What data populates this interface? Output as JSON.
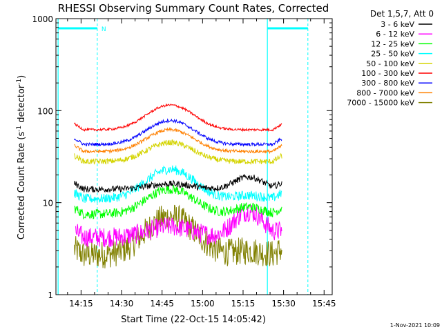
{
  "chart_data": {
    "type": "line",
    "title": "RHESSI Observing Summary Count Rates, Corrected",
    "xlabel": "Start Time (22-Oct-15 14:05:42)",
    "ylabel": "Corrected Count Rate (s^-1 detector^-1)",
    "ylabel_parts": {
      "main": "Corrected Count Rate (s",
      "exp1": "-1",
      "mid": " detector",
      "exp2": "-1",
      "end": ")"
    },
    "x_ticks": [
      "14:15",
      "14:30",
      "14:45",
      "15:00",
      "15:15",
      "15:30",
      "15:45"
    ],
    "x_tick_minutes": [
      15,
      30,
      45,
      60,
      75,
      90,
      105
    ],
    "xlim_minutes": [
      5.7,
      108
    ],
    "y_scale": "log",
    "ylim": [
      1,
      1000
    ],
    "y_ticks": [
      "1",
      "10",
      "100",
      "1000"
    ],
    "y_tick_values": [
      1,
      10,
      100,
      1000
    ],
    "grid": false,
    "legend_title": "Det 1,5,7, Att 0",
    "legend_placement": "right",
    "timestamp": "1-Nov-2021 10:09",
    "night_marker": "N",
    "shaded_intervals_minutes": [
      [
        6.5,
        21
      ],
      [
        84,
        99
      ]
    ],
    "series": [
      {
        "name": "3 - 6 keV",
        "color": "#000000",
        "start": 12.5,
        "end": 89.5,
        "base": 14,
        "bump": 16,
        "bump2": 19,
        "noise": 0.08,
        "color_desc": "black"
      },
      {
        "name": "6 - 12 keV",
        "color": "#ff00ff",
        "start": 13,
        "end": 89.5,
        "base": 4.2,
        "bump": 5.5,
        "bump2": 8,
        "noise": 0.25
      },
      {
        "name": "12 - 25 keV",
        "color": "#00ff00",
        "start": 12.5,
        "end": 89.5,
        "base": 7.5,
        "bump": 14,
        "bump2": 9,
        "noise": 0.12
      },
      {
        "name": "25 - 50 keV",
        "color": "#00ffff",
        "start": 12.5,
        "end": 89.5,
        "base": 11,
        "bump": 23,
        "bump2": 12,
        "noise": 0.12
      },
      {
        "name": "50 - 100 keV",
        "color": "#d4d400",
        "start": 12.5,
        "end": 89.5,
        "base": 28,
        "bump": 45,
        "bump2": 28,
        "noise": 0.07
      },
      {
        "name": "100 - 300 keV",
        "color": "#ff0000",
        "start": 12.5,
        "end": 89.5,
        "base": 62,
        "bump": 115,
        "bump2": 62,
        "noise": 0.03
      },
      {
        "name": "300 - 800 keV",
        "color": "#0000ff",
        "start": 12.5,
        "end": 89.5,
        "base": 43,
        "bump": 78,
        "bump2": 43,
        "noise": 0.04
      },
      {
        "name": "800 - 7000 keV",
        "color": "#ff8000",
        "start": 12.5,
        "end": 89.5,
        "base": 36,
        "bump": 62,
        "bump2": 36,
        "noise": 0.04
      },
      {
        "name": "7000 - 15000 keV",
        "color": "#808000",
        "start": 12.5,
        "end": 89.5,
        "base": 2.7,
        "bump": 7,
        "bump2": 3,
        "noise": 0.35
      }
    ]
  }
}
